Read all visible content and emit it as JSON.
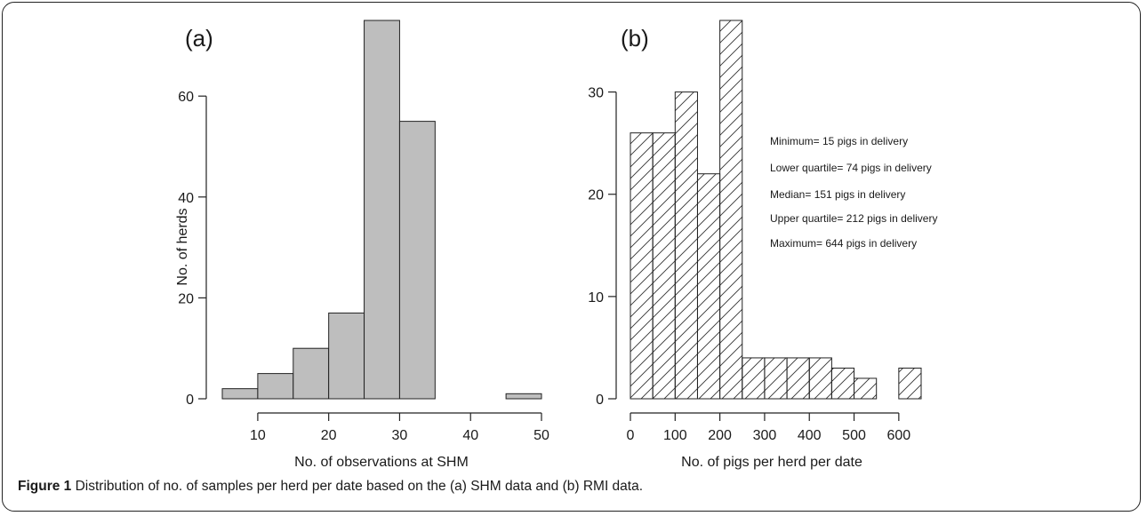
{
  "caption": {
    "label": "Figure 1",
    "text": " Distribution of no. of samples per herd per date based on the (a) SHM data and (b) RMI data."
  },
  "chart_data": [
    {
      "type": "bar",
      "panel_label": "(a)",
      "xlabel": "No. of observations at SHM",
      "ylabel": "No. of herds",
      "bin_edges": [
        5,
        10,
        15,
        20,
        25,
        30,
        35,
        40,
        45,
        50
      ],
      "values": [
        2,
        5,
        10,
        17,
        75,
        55,
        0,
        0,
        1
      ],
      "xlim": [
        5,
        50
      ],
      "ylim": [
        0,
        75
      ],
      "xticks": [
        10,
        20,
        30,
        40,
        50
      ],
      "yticks": [
        0,
        20,
        40,
        60
      ],
      "fill": "#bebebe",
      "grid": false
    },
    {
      "type": "bar",
      "panel_label": "(b)",
      "xlabel": "No. of pigs per herd per date",
      "ylabel": "",
      "bin_edges": [
        0,
        50,
        100,
        150,
        200,
        250,
        300,
        350,
        400,
        450,
        500,
        550,
        600,
        650
      ],
      "values": [
        26,
        26,
        30,
        22,
        37,
        4,
        4,
        4,
        4,
        3,
        2,
        0,
        3
      ],
      "xlim": [
        0,
        650
      ],
      "ylim": [
        0,
        37
      ],
      "xticks": [
        0,
        100,
        200,
        300,
        400,
        500,
        600
      ],
      "yticks": [
        0,
        10,
        20,
        30
      ],
      "fill": "hatch",
      "grid": false,
      "annotations": [
        "Minimum= 15 pigs in delivery",
        "Lower quartile= 74 pigs in delivery",
        "Median= 151 pigs in delivery",
        "Upper quartile= 212 pigs in delivery",
        "Maximum= 644 pigs in delivery"
      ]
    }
  ]
}
